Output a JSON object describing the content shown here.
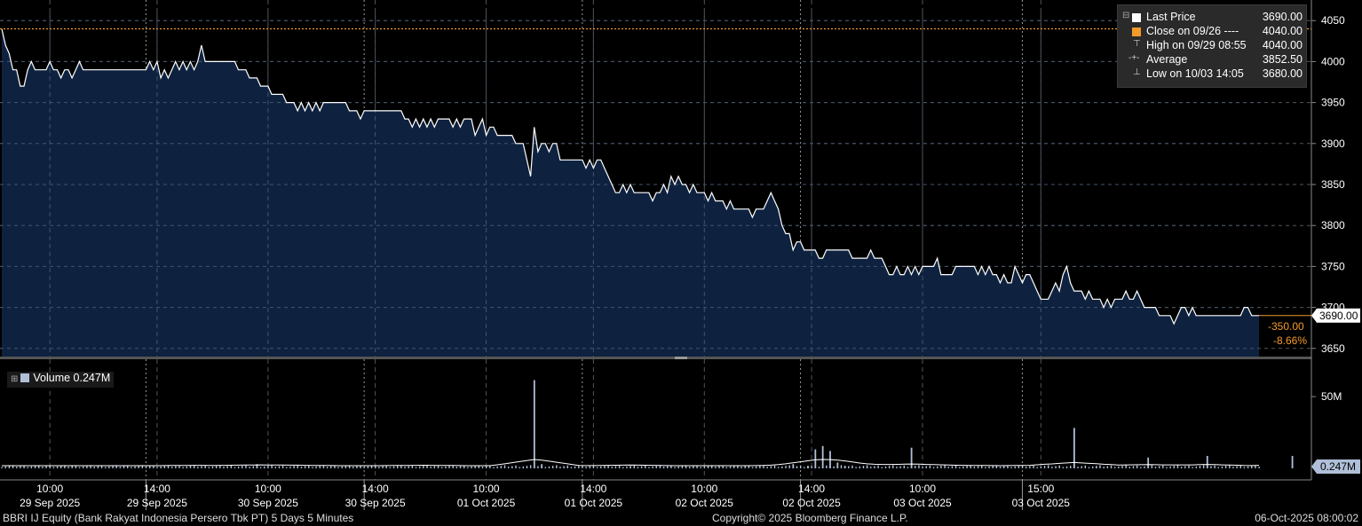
{
  "chart_data": [
    {
      "type": "area",
      "y_range": [
        3640,
        4060
      ],
      "yticks": [
        3650,
        3700,
        3750,
        3800,
        3850,
        3900,
        3950,
        4000,
        4050
      ],
      "reference_close": 4040,
      "last_value_label": "3690.00",
      "change": "-350.00",
      "change_pct": "-8.66%",
      "colors": {
        "fill": "#0e2240",
        "line": "#ffffff",
        "close_line": "#f39a2b",
        "grid": "#555555"
      },
      "x_index_range": [
        0,
        346
      ],
      "series": [
        {
          "values": [
            4040,
            4020,
            4010,
            3990,
            3990,
            3970,
            3970,
            3990,
            4000,
            3990,
            3990,
            3990,
            3990,
            4000,
            3990,
            3990,
            3980,
            3990,
            3990,
            3980,
            3990,
            4000,
            3990,
            3990,
            3990,
            3990,
            3990,
            3990,
            3990,
            3990,
            3990,
            3990,
            3990,
            3990,
            3990,
            3990,
            3990,
            3990,
            3990,
            3990,
            4000,
            3990,
            4000,
            3980,
            3990,
            3980,
            3990,
            4000,
            3990,
            4000,
            3990,
            4000,
            3990,
            4000,
            4020,
            4000,
            4000,
            4000,
            4000,
            4000,
            4000,
            4000,
            4000,
            4000,
            3990,
            3990,
            3990,
            3980,
            3980,
            3980,
            3970,
            3970,
            3970,
            3960,
            3960,
            3960,
            3960,
            3950,
            3950,
            3950,
            3940,
            3950,
            3940,
            3950,
            3940,
            3950,
            3940,
            3950,
            3950,
            3950,
            3950,
            3950,
            3950,
            3950,
            3940,
            3940,
            3940,
            3930,
            3940,
            3940,
            3940,
            3940,
            3940,
            3940,
            3940,
            3940,
            3940,
            3940,
            3940,
            3930,
            3930,
            3920,
            3930,
            3920,
            3930,
            3920,
            3930,
            3920,
            3930,
            3930,
            3930,
            3930,
            3920,
            3930,
            3920,
            3930,
            3930,
            3930,
            3910,
            3920,
            3930,
            3910,
            3920,
            3920,
            3910,
            3910,
            3910,
            3910,
            3910,
            3900,
            3900,
            3900,
            3880,
            3860,
            3920,
            3890,
            3900,
            3900,
            3890,
            3900,
            3900,
            3880,
            3880,
            3880,
            3880,
            3880,
            3880,
            3880,
            3870,
            3880,
            3870,
            3880,
            3880,
            3870,
            3860,
            3850,
            3840,
            3840,
            3850,
            3840,
            3850,
            3840,
            3840,
            3840,
            3840,
            3840,
            3830,
            3840,
            3840,
            3850,
            3840,
            3860,
            3850,
            3860,
            3850,
            3850,
            3840,
            3850,
            3840,
            3840,
            3840,
            3830,
            3840,
            3830,
            3830,
            3830,
            3820,
            3830,
            3820,
            3820,
            3820,
            3820,
            3820,
            3810,
            3820,
            3820,
            3820,
            3830,
            3840,
            3830,
            3820,
            3800,
            3790,
            3790,
            3770,
            3780,
            3780,
            3770,
            3770,
            3770,
            3770,
            3760,
            3760,
            3770,
            3770,
            3770,
            3770,
            3770,
            3770,
            3770,
            3760,
            3760,
            3760,
            3760,
            3760,
            3770,
            3760,
            3760,
            3760,
            3750,
            3740,
            3740,
            3750,
            3740,
            3740,
            3750,
            3740,
            3750,
            3740,
            3750,
            3750,
            3750,
            3750,
            3760,
            3740,
            3740,
            3740,
            3740,
            3750,
            3750,
            3750,
            3750,
            3750,
            3750,
            3740,
            3750,
            3740,
            3750,
            3740,
            3740,
            3730,
            3740,
            3730,
            3730,
            3750,
            3740,
            3730,
            3740,
            3740,
            3730,
            3720,
            3710,
            3710,
            3710,
            3720,
            3730,
            3720,
            3740,
            3750,
            3730,
            3720,
            3720,
            3720,
            3710,
            3720,
            3710,
            3710,
            3710,
            3700,
            3710,
            3700,
            3710,
            3710,
            3710,
            3720,
            3710,
            3710,
            3720,
            3710,
            3700,
            3700,
            3700,
            3700,
            3690,
            3690,
            3690,
            3690,
            3680,
            3690,
            3700,
            3700,
            3690,
            3700,
            3690,
            3690,
            3690,
            3690,
            3690,
            3690,
            3690,
            3690,
            3690,
            3690,
            3690,
            3690,
            3690,
            3700,
            3700,
            3690,
            3690,
            3690
          ]
        }
      ]
    },
    {
      "type": "bar",
      "y_range": [
        0,
        70
      ],
      "yticks": [
        "50M"
      ],
      "ytick_values": [
        50
      ],
      "last_value_label": "0.247M",
      "colors": {
        "bar": "#b0bfd8",
        "avg": "#ffffff"
      },
      "spikes": [
        {
          "i": 144,
          "v": 60
        },
        {
          "i": 146,
          "v": 9
        },
        {
          "i": 148,
          "v": 4
        },
        {
          "i": 218,
          "v": 8
        },
        {
          "i": 220,
          "v": 18
        },
        {
          "i": 222,
          "v": 20
        },
        {
          "i": 224,
          "v": 17
        },
        {
          "i": 226,
          "v": 10
        },
        {
          "i": 228,
          "v": 8
        },
        {
          "i": 230,
          "v": 6
        },
        {
          "i": 246,
          "v": 19
        },
        {
          "i": 290,
          "v": 31
        },
        {
          "i": 296,
          "v": 7
        },
        {
          "i": 310,
          "v": 13
        },
        {
          "i": 326,
          "v": 14
        },
        {
          "i": 349,
          "v": 14
        },
        {
          "i": 53,
          "v": 4
        },
        {
          "i": 69,
          "v": 9
        },
        {
          "i": 80,
          "v": 5
        },
        {
          "i": 114,
          "v": 5
        },
        {
          "i": 170,
          "v": 7
        },
        {
          "i": 258,
          "v": 5
        },
        {
          "i": 282,
          "v": 6
        },
        {
          "i": 214,
          "v": 9
        },
        {
          "i": 234,
          "v": 7
        }
      ]
    }
  ],
  "legend": {
    "last_price_label": "Last Price",
    "last_price_value": "3690.00",
    "close_label": "Close on 09/26 ----",
    "close_value": "4040.00",
    "high_label": "High on 09/29 08:55",
    "high_value": "4040.00",
    "average_label": "Average",
    "average_value": "3852.50",
    "low_label": "Low on 10/03 14:05",
    "low_value": "3680.00"
  },
  "volume_legend": {
    "label": "Volume 0.247M"
  },
  "x_axis": {
    "times": [
      "10:00",
      "14:00",
      "10:00",
      "14:00",
      "10:00",
      "14:00",
      "10:00",
      "14:00",
      "10:00",
      "15:00"
    ],
    "dates": [
      "29 Sep 2025",
      "29 Sep 2025",
      "30 Sep 2025",
      "30 Sep 2025",
      "01 Oct 2025",
      "01 Oct 2025",
      "02 Oct 2025",
      "02 Oct 2025",
      "03 Oct 2025",
      "03 Oct 2025"
    ]
  },
  "footer": {
    "security": "BBRI IJ Equity (Bank Rakyat Indonesia Persero Tbk PT) 5 Days 5 Minutes",
    "copyright": "Copyright© 2025 Bloomberg Finance L.P.",
    "timestamp": "06-Oct-2025 08:00:02"
  }
}
